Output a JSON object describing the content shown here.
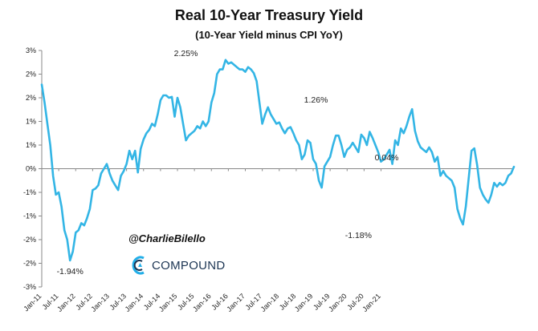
{
  "chart_data": {
    "type": "line",
    "title": "Real 10-Year Treasury Yield",
    "subtitle": "(10-Year Yield minus CPI YoY)",
    "xlabel": "",
    "ylabel": "",
    "yticks": [
      "3%",
      "2%",
      "2%",
      "1%",
      "1%",
      "0%",
      "-1%",
      "-1%",
      "-2%",
      "-2%",
      "-3%"
    ],
    "ylim": [
      -2.5,
      2.5
    ],
    "xticks": [
      "Jan-11",
      "Jul-11",
      "Jan-12",
      "Jul-12",
      "Jan-13",
      "Jul-13",
      "Jan-14",
      "Jul-14",
      "Jan-15",
      "Jul-15",
      "Jan-16",
      "Jul-16",
      "Jan-17",
      "Jul-17",
      "Jan-18",
      "Jul-18",
      "Jan-19",
      "Jul-19",
      "Jan-20",
      "Jul-20",
      "Jan-21"
    ],
    "x_start": "Jan-11",
    "color": "#33b5e5",
    "series": [
      {
        "values": [
          1.78,
          1.4,
          0.95,
          0.5,
          -0.15,
          -0.55,
          -0.5,
          -0.8,
          -1.3,
          -1.5,
          -1.94,
          -1.75,
          -1.35,
          -1.3,
          -1.15,
          -1.2,
          -1.05,
          -0.85,
          -0.45,
          -0.42,
          -0.35,
          -0.1,
          0.0,
          0.1,
          -0.1,
          -0.25,
          -0.35,
          -0.45,
          -0.15,
          -0.05,
          0.1,
          0.38,
          0.2,
          0.38,
          -0.08,
          0.42,
          0.62,
          0.75,
          0.82,
          0.95,
          0.9,
          1.15,
          1.45,
          1.55,
          1.55,
          1.5,
          1.52,
          1.1,
          1.5,
          1.3,
          0.95,
          0.6,
          0.7,
          0.75,
          0.8,
          0.9,
          0.85,
          1.0,
          0.9,
          1.0,
          1.4,
          1.6,
          2.0,
          2.1,
          2.1,
          2.3,
          2.22,
          2.25,
          2.2,
          2.15,
          2.1,
          2.1,
          2.05,
          2.15,
          2.1,
          2.02,
          1.85,
          1.4,
          0.95,
          1.15,
          1.3,
          1.15,
          1.05,
          0.95,
          0.98,
          0.85,
          0.75,
          0.85,
          0.88,
          0.75,
          0.6,
          0.5,
          0.2,
          0.3,
          0.6,
          0.55,
          0.2,
          0.1,
          -0.25,
          -0.4,
          0.05,
          0.15,
          0.25,
          0.5,
          0.7,
          0.7,
          0.5,
          0.25,
          0.4,
          0.45,
          0.55,
          0.45,
          0.35,
          0.72,
          0.65,
          0.5,
          0.78,
          0.65,
          0.5,
          0.35,
          0.15,
          0.2,
          0.3,
          0.4,
          0.1,
          0.6,
          0.5,
          0.85,
          0.75,
          0.9,
          1.1,
          1.26,
          0.8,
          0.58,
          0.45,
          0.4,
          0.35,
          0.45,
          0.35,
          0.15,
          0.25,
          -0.15,
          -0.05,
          -0.15,
          -0.2,
          -0.25,
          -0.4,
          -0.85,
          -1.05,
          -1.18,
          -0.8,
          -0.2,
          0.38,
          0.43,
          0.08,
          -0.4,
          -0.55,
          -0.65,
          -0.72,
          -0.55,
          -0.3,
          -0.38,
          -0.3,
          -0.35,
          -0.3,
          -0.15,
          -0.1,
          0.04
        ]
      }
    ],
    "annotations": [
      {
        "text": "2.25%",
        "x": "Apr-15",
        "y": 2.25
      },
      {
        "text": "1.26%",
        "x": "Feb-19",
        "y": 1.26
      },
      {
        "text": "0.04%",
        "x": "Mar-21",
        "y": 0.04
      },
      {
        "text": "-1.94%",
        "x": "Nov-11",
        "y": -1.94
      },
      {
        "text": "-1.18%",
        "x": "May-20",
        "y": -1.18
      }
    ]
  },
  "watermark": {
    "handle": "@CharlieBilello",
    "brand": "COMPOUND"
  }
}
